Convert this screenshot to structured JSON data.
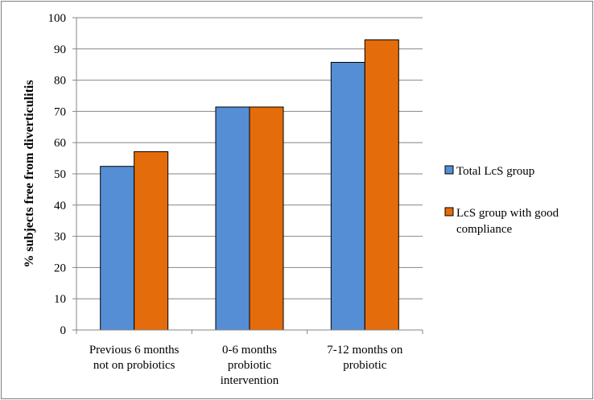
{
  "chart_data": {
    "type": "bar",
    "title": "",
    "xlabel": "",
    "ylabel": "% subjects free from diverticulitis",
    "ylim": [
      0,
      100
    ],
    "yticks": [
      "0",
      "10",
      "20",
      "30",
      "40",
      "50",
      "60",
      "70",
      "80",
      "90",
      "100"
    ],
    "grid": true,
    "legend_position": "right",
    "categories": [
      [
        "Previous 6 months",
        "not on probiotics"
      ],
      [
        "0-6 months",
        "probiotic",
        "intervention"
      ],
      [
        "7-12 months on",
        "probiotic"
      ]
    ],
    "series": [
      {
        "name": "Total LcS group",
        "color": "#558ed5",
        "values": [
          52.4,
          71.4,
          85.7
        ]
      },
      {
        "name": [
          "LcS group with good",
          "compliance"
        ],
        "color": "#e46c0a",
        "values": [
          57.1,
          71.4,
          92.9
        ]
      }
    ]
  }
}
